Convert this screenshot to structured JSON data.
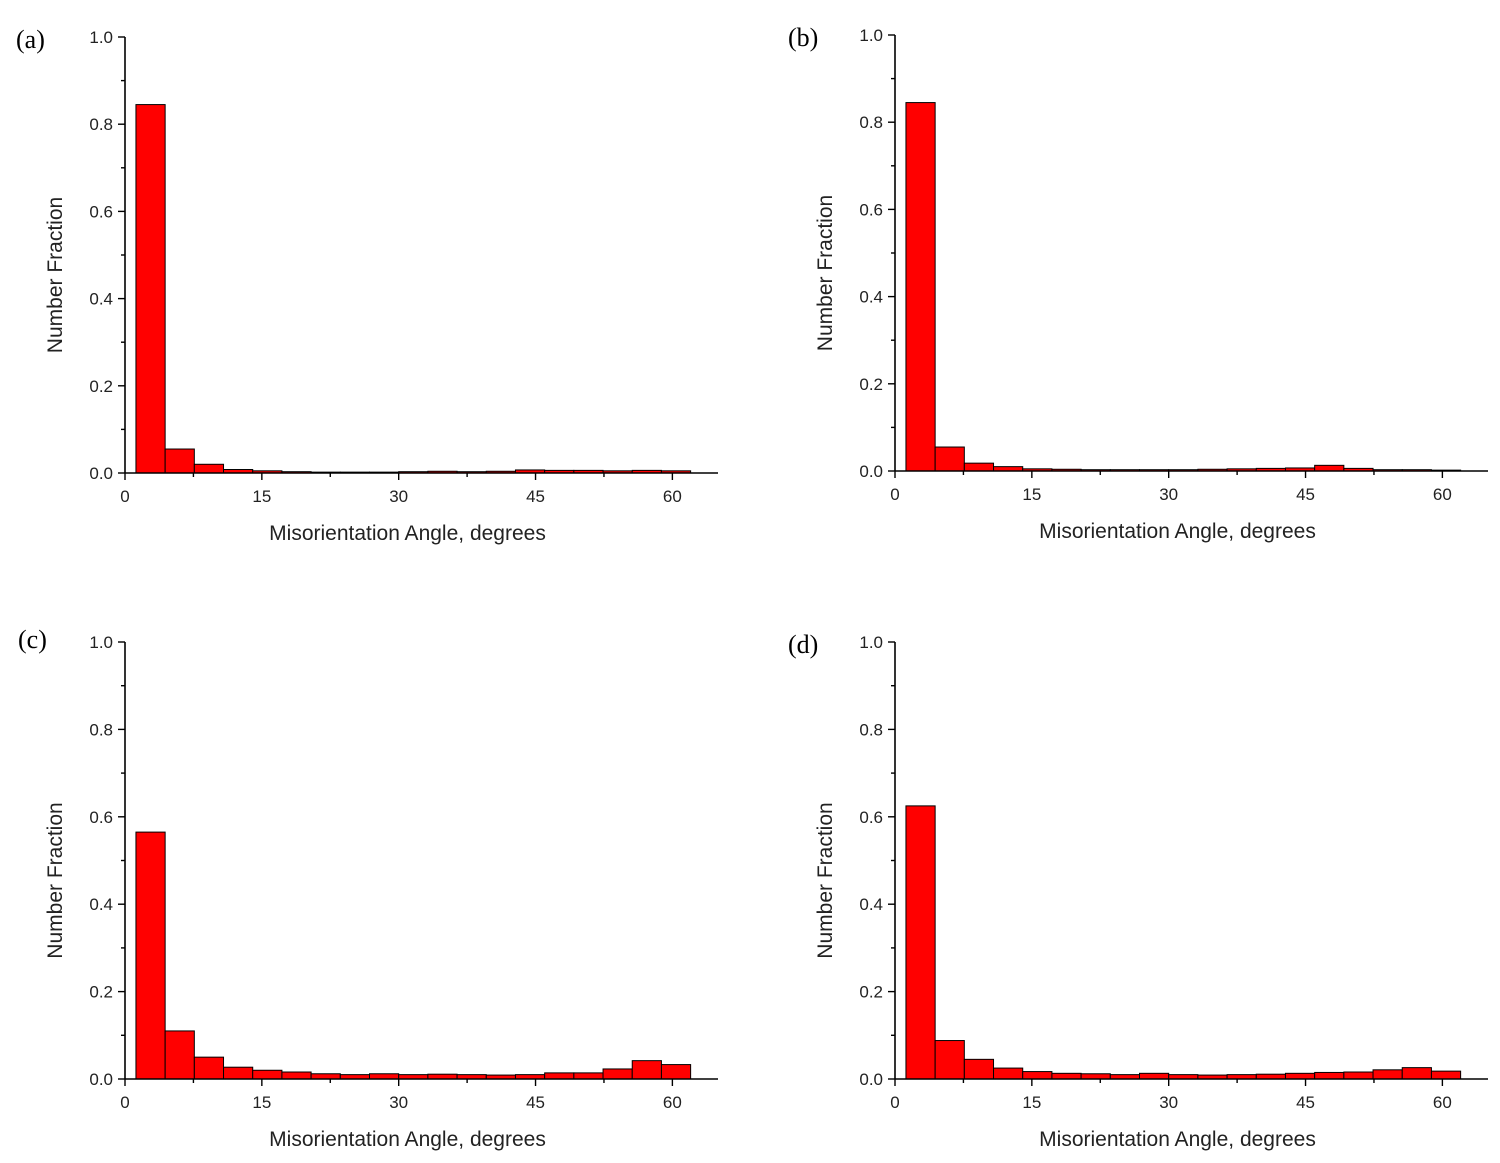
{
  "chart_data": [
    {
      "panel": "(a)",
      "type": "bar",
      "xlabel": "Misorientation Angle, degrees",
      "ylabel": "Number Fraction",
      "xlim": [
        0,
        65
      ],
      "ylim": [
        0,
        1.0
      ],
      "xticks": [
        0,
        15,
        30,
        45,
        60
      ],
      "yticks": [
        0.0,
        0.2,
        0.4,
        0.6,
        0.8,
        1.0
      ],
      "bin_width": 3.2,
      "bin_start": 1.2,
      "values": [
        0.845,
        0.055,
        0.02,
        0.008,
        0.005,
        0.003,
        0.002,
        0.002,
        0.002,
        0.003,
        0.004,
        0.003,
        0.004,
        0.007,
        0.006,
        0.006,
        0.005,
        0.006,
        0.005
      ],
      "color": "#ff0000"
    },
    {
      "panel": "(b)",
      "type": "bar",
      "xlabel": "Misorientation Angle, degrees",
      "ylabel": "Number Fraction",
      "xlim": [
        0,
        65
      ],
      "ylim": [
        0,
        1.0
      ],
      "xticks": [
        0,
        15,
        30,
        45,
        60
      ],
      "yticks": [
        0.0,
        0.2,
        0.4,
        0.6,
        0.8,
        1.0
      ],
      "bin_width": 3.2,
      "bin_start": 1.2,
      "values": [
        0.845,
        0.055,
        0.018,
        0.01,
        0.005,
        0.004,
        0.003,
        0.003,
        0.003,
        0.003,
        0.004,
        0.005,
        0.006,
        0.007,
        0.013,
        0.006,
        0.003,
        0.003,
        0.002
      ],
      "color": "#ff0000"
    },
    {
      "panel": "(c)",
      "type": "bar",
      "xlabel": "Misorientation Angle, degrees",
      "ylabel": "Number Fraction",
      "xlim": [
        0,
        65
      ],
      "ylim": [
        0,
        1.0
      ],
      "xticks": [
        0,
        15,
        30,
        45,
        60
      ],
      "yticks": [
        0.0,
        0.2,
        0.4,
        0.6,
        0.8,
        1.0
      ],
      "bin_width": 3.2,
      "bin_start": 1.2,
      "values": [
        0.565,
        0.11,
        0.05,
        0.027,
        0.02,
        0.016,
        0.012,
        0.01,
        0.012,
        0.01,
        0.011,
        0.01,
        0.009,
        0.01,
        0.014,
        0.014,
        0.023,
        0.042,
        0.033
      ],
      "color": "#ff0000"
    },
    {
      "panel": "(d)",
      "type": "bar",
      "xlabel": "Misorientation Angle, degrees",
      "ylabel": "Number Fraction",
      "xlim": [
        0,
        65
      ],
      "ylim": [
        0,
        1.0
      ],
      "xticks": [
        0,
        15,
        30,
        45,
        60
      ],
      "yticks": [
        0.0,
        0.2,
        0.4,
        0.6,
        0.8,
        1.0
      ],
      "bin_width": 3.2,
      "bin_start": 1.2,
      "values": [
        0.625,
        0.088,
        0.045,
        0.025,
        0.017,
        0.013,
        0.012,
        0.01,
        0.013,
        0.01,
        0.009,
        0.01,
        0.011,
        0.013,
        0.015,
        0.016,
        0.021,
        0.026,
        0.018
      ],
      "color": "#ff0000"
    }
  ]
}
